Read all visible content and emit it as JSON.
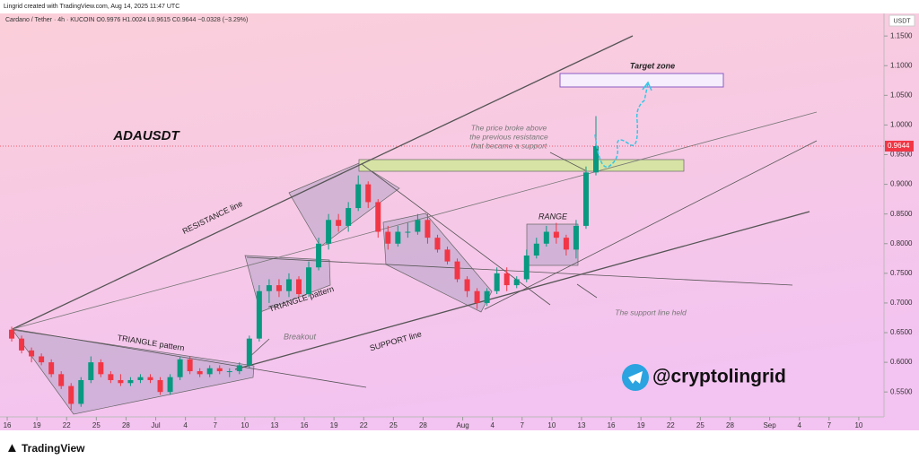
{
  "header": {
    "credit": "Lingrid created with TradingView.com, Aug 14, 2025 11:47 UTC",
    "symbol": "Cardano / Tether · 4h · KUCOIN   O0.9976  H1.0024  L0.9615  C0.9644  −0.0328 (−3.29%)"
  },
  "footer": {
    "brand": "TradingView"
  },
  "annotations": {
    "ticker": "ADAUSDT",
    "resistance": "RESISTANCE line",
    "support": "SUPPORT line",
    "triangle1": "TRIANGLE pattern",
    "triangle2": "TRIANGLE pattern",
    "breakout": "Breakout",
    "range": "RANGE",
    "target": "Target zone",
    "callout": [
      "The price broke above",
      "the previous resistance",
      "that became a support"
    ],
    "held": "The support line held",
    "handle": "@cryptolingrid"
  },
  "chart_data": {
    "type": "candlestick",
    "y_axis_unit": "USDT",
    "last_price": {
      "value": 0.9644,
      "label": "0.9644"
    },
    "x": [
      "2025-06-16",
      "2025-06-17",
      "2025-06-18",
      "2025-06-19",
      "2025-06-20",
      "2025-06-21",
      "2025-06-22",
      "2025-06-23",
      "2025-06-24",
      "2025-06-25",
      "2025-06-26",
      "2025-06-27",
      "2025-06-28",
      "2025-06-29",
      "2025-06-30",
      "2025-07-01",
      "2025-07-02",
      "2025-07-03",
      "2025-07-04",
      "2025-07-05",
      "2025-07-06",
      "2025-07-07",
      "2025-07-08",
      "2025-07-09",
      "2025-07-10",
      "2025-07-11",
      "2025-07-12",
      "2025-07-13",
      "2025-07-14",
      "2025-07-15",
      "2025-07-16",
      "2025-07-17",
      "2025-07-18",
      "2025-07-19",
      "2025-07-20",
      "2025-07-21",
      "2025-07-22",
      "2025-07-23",
      "2025-07-24",
      "2025-07-25",
      "2025-07-26",
      "2025-07-27",
      "2025-07-28",
      "2025-07-29",
      "2025-07-30",
      "2025-07-31",
      "2025-08-01",
      "2025-08-02",
      "2025-08-03",
      "2025-08-04",
      "2025-08-05",
      "2025-08-06",
      "2025-08-07",
      "2025-08-08",
      "2025-08-09",
      "2025-08-10",
      "2025-08-11",
      "2025-08-12",
      "2025-08-13",
      "2025-08-14"
    ],
    "open": [
      0.655,
      0.64,
      0.62,
      0.61,
      0.6,
      0.58,
      0.56,
      0.53,
      0.57,
      0.6,
      0.58,
      0.57,
      0.565,
      0.57,
      0.575,
      0.57,
      0.55,
      0.575,
      0.605,
      0.585,
      0.58,
      0.59,
      0.585,
      0.585,
      0.595,
      0.64,
      0.72,
      0.73,
      0.72,
      0.74,
      0.715,
      0.76,
      0.8,
      0.84,
      0.83,
      0.86,
      0.9,
      0.87,
      0.82,
      0.8,
      0.82,
      0.82,
      0.84,
      0.81,
      0.79,
      0.77,
      0.74,
      0.72,
      0.7,
      0.72,
      0.75,
      0.73,
      0.74,
      0.78,
      0.8,
      0.82,
      0.81,
      0.79,
      0.83,
      0.92
    ],
    "high": [
      0.66,
      0.645,
      0.625,
      0.615,
      0.605,
      0.585,
      0.565,
      0.575,
      0.61,
      0.605,
      0.585,
      0.58,
      0.575,
      0.58,
      0.58,
      0.575,
      0.58,
      0.61,
      0.61,
      0.59,
      0.595,
      0.595,
      0.59,
      0.6,
      0.645,
      0.73,
      0.74,
      0.74,
      0.75,
      0.745,
      0.77,
      0.81,
      0.85,
      0.85,
      0.87,
      0.915,
      0.905,
      0.875,
      0.83,
      0.83,
      0.835,
      0.85,
      0.85,
      0.815,
      0.795,
      0.775,
      0.745,
      0.725,
      0.725,
      0.76,
      0.76,
      0.745,
      0.79,
      0.81,
      0.83,
      0.835,
      0.815,
      0.84,
      0.93,
      1.015
    ],
    "low": [
      0.635,
      0.615,
      0.6,
      0.595,
      0.575,
      0.555,
      0.52,
      0.525,
      0.565,
      0.575,
      0.565,
      0.56,
      0.56,
      0.565,
      0.565,
      0.545,
      0.545,
      0.57,
      0.58,
      0.575,
      0.575,
      0.58,
      0.575,
      0.58,
      0.59,
      0.635,
      0.7,
      0.71,
      0.71,
      0.71,
      0.71,
      0.755,
      0.79,
      0.82,
      0.82,
      0.855,
      0.86,
      0.81,
      0.79,
      0.795,
      0.81,
      0.815,
      0.8,
      0.785,
      0.765,
      0.735,
      0.71,
      0.69,
      0.695,
      0.715,
      0.72,
      0.725,
      0.735,
      0.775,
      0.795,
      0.8,
      0.78,
      0.775,
      0.825,
      0.915
    ],
    "close": [
      0.64,
      0.62,
      0.61,
      0.6,
      0.58,
      0.56,
      0.53,
      0.57,
      0.6,
      0.58,
      0.57,
      0.565,
      0.57,
      0.575,
      0.57,
      0.55,
      0.575,
      0.605,
      0.585,
      0.58,
      0.59,
      0.585,
      0.585,
      0.595,
      0.64,
      0.72,
      0.73,
      0.72,
      0.74,
      0.715,
      0.76,
      0.8,
      0.84,
      0.83,
      0.86,
      0.9,
      0.87,
      0.82,
      0.8,
      0.82,
      0.82,
      0.84,
      0.81,
      0.79,
      0.77,
      0.74,
      0.72,
      0.7,
      0.72,
      0.75,
      0.73,
      0.74,
      0.78,
      0.8,
      0.82,
      0.81,
      0.79,
      0.83,
      0.92,
      0.9644
    ],
    "up_color": "#089981",
    "down_color": "#f23645",
    "xlim": [
      "2025-06-15",
      "2025-09-13"
    ],
    "xticks": [
      {
        "value": "2025-06-16",
        "label": "16"
      },
      {
        "value": "2025-06-19",
        "label": "19"
      },
      {
        "value": "2025-06-22",
        "label": "22"
      },
      {
        "value": "2025-06-25",
        "label": "25"
      },
      {
        "value": "2025-06-28",
        "label": "28"
      },
      {
        "value": "2025-07-01",
        "label": "Jul"
      },
      {
        "value": "2025-07-04",
        "label": "4"
      },
      {
        "value": "2025-07-07",
        "label": "7"
      },
      {
        "value": "2025-07-10",
        "label": "10"
      },
      {
        "value": "2025-07-13",
        "label": "13"
      },
      {
        "value": "2025-07-16",
        "label": "16"
      },
      {
        "value": "2025-07-19",
        "label": "19"
      },
      {
        "value": "2025-07-22",
        "label": "22"
      },
      {
        "value": "2025-07-25",
        "label": "25"
      },
      {
        "value": "2025-07-28",
        "label": "28"
      },
      {
        "value": "2025-08-01",
        "label": "Aug"
      },
      {
        "value": "2025-08-04",
        "label": "4"
      },
      {
        "value": "2025-08-07",
        "label": "7"
      },
      {
        "value": "2025-08-10",
        "label": "10"
      },
      {
        "value": "2025-08-13",
        "label": "13"
      },
      {
        "value": "2025-08-16",
        "label": "16"
      },
      {
        "value": "2025-08-19",
        "label": "19"
      },
      {
        "value": "2025-08-22",
        "label": "22"
      },
      {
        "value": "2025-08-25",
        "label": "25"
      },
      {
        "value": "2025-08-28",
        "label": "28"
      },
      {
        "value": "2025-09-01",
        "label": "Sep"
      },
      {
        "value": "2025-09-04",
        "label": "4"
      },
      {
        "value": "2025-09-07",
        "label": "7"
      },
      {
        "value": "2025-09-10",
        "label": "10"
      }
    ],
    "ylim": [
      0.508,
      1.188
    ],
    "yticks": [
      {
        "value": 0.55,
        "label": "0.5500"
      },
      {
        "value": 0.6,
        "label": "0.6000"
      },
      {
        "value": 0.65,
        "label": "0.6500"
      },
      {
        "value": 0.7,
        "label": "0.7000"
      },
      {
        "value": 0.75,
        "label": "0.7500"
      },
      {
        "value": 0.8,
        "label": "0.8000"
      },
      {
        "value": 0.85,
        "label": "0.8500"
      },
      {
        "value": 0.9,
        "label": "0.9000"
      },
      {
        "value": 0.95,
        "label": "0.9500"
      },
      {
        "value": 1.0,
        "label": "1.0000"
      },
      {
        "value": 1.05,
        "label": "1.0500"
      },
      {
        "value": 1.1,
        "label": "1.1000"
      },
      {
        "value": 1.15,
        "label": "1.1500"
      }
    ]
  }
}
